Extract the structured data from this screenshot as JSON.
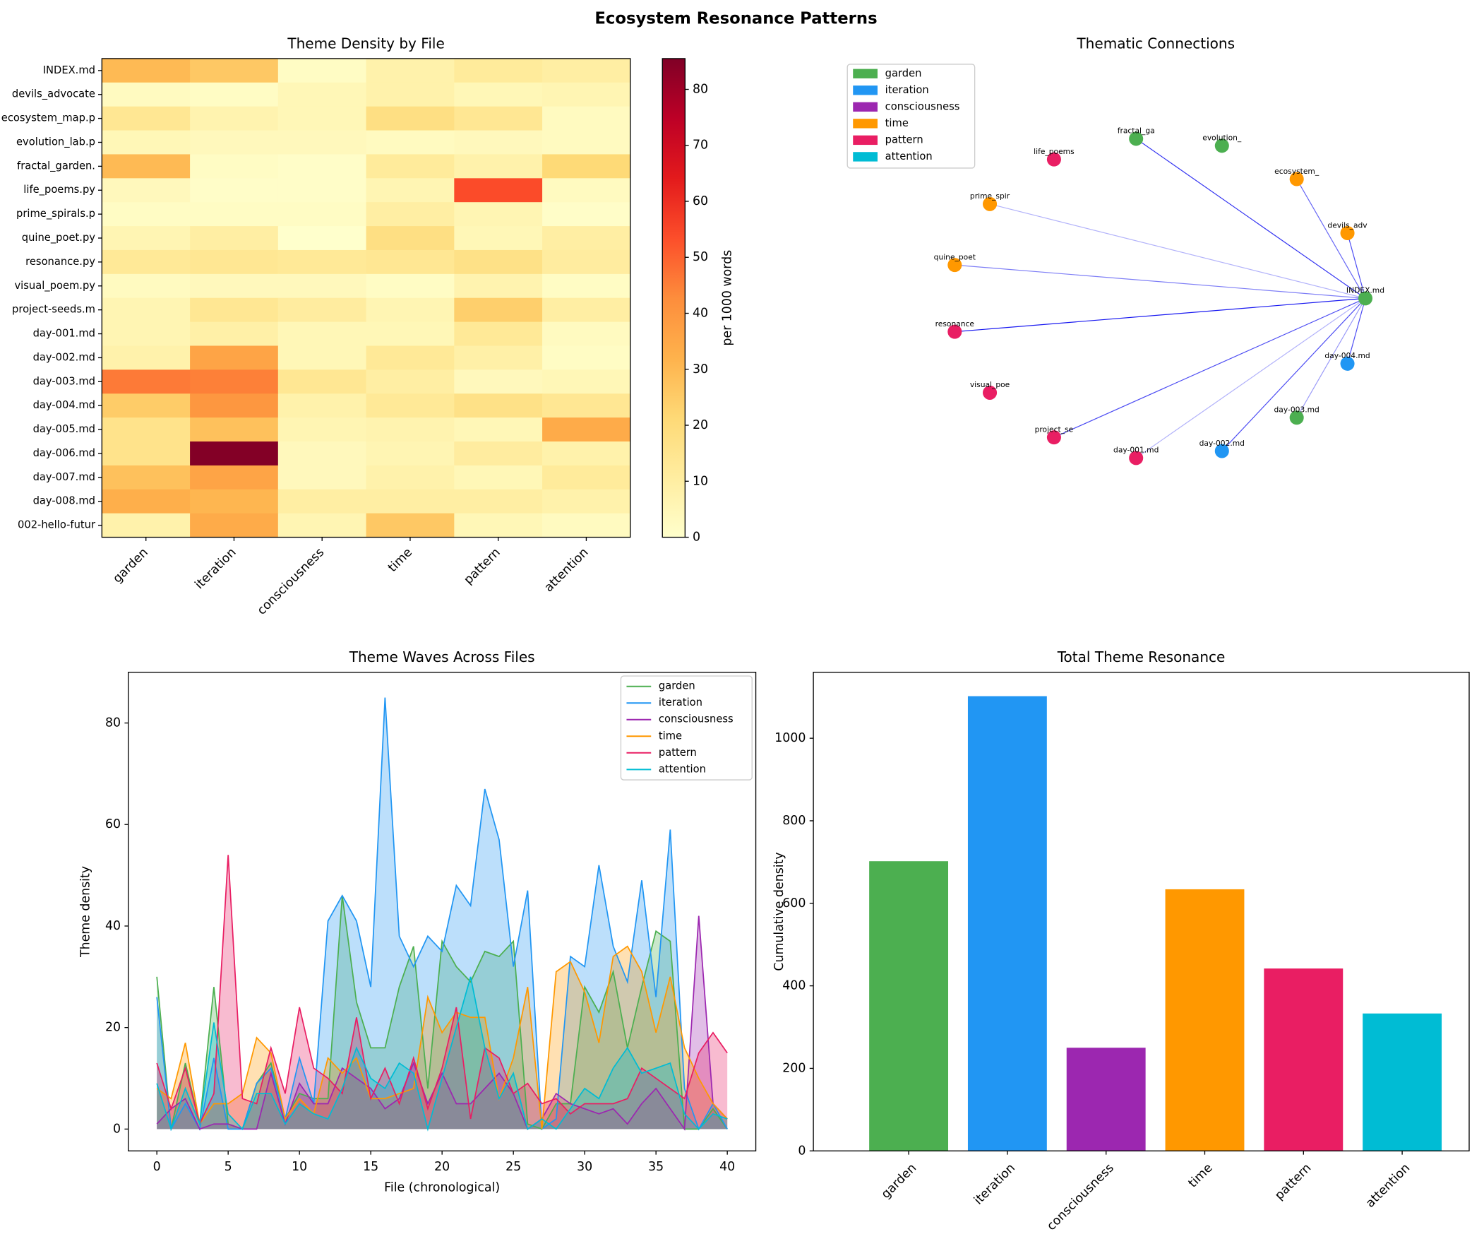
{
  "title": "Ecosystem Resonance Patterns",
  "chart_data": [
    {
      "type": "heatmap",
      "title": "Theme Density by File",
      "columns": [
        "garden",
        "iteration",
        "consciousness",
        "time",
        "pattern",
        "attention"
      ],
      "rows": [
        "INDEX.md",
        "devils_advocate",
        "ecosystem_map.p",
        "evolution_lab.p",
        "fractal_garden.",
        "life_poems.py",
        "prime_spirals.p",
        "quine_poet.py",
        "resonance.py",
        "visual_poem.py",
        "project-seeds.m",
        "day-001.md",
        "day-002.md",
        "day-003.md",
        "day-004.md",
        "day-005.md",
        "day-006.md",
        "day-007.md",
        "day-008.md",
        "002-hello-futur"
      ],
      "values": [
        [
          30,
          26,
          2,
          8,
          12,
          10
        ],
        [
          3,
          2,
          5,
          8,
          5,
          6
        ],
        [
          14,
          7,
          5,
          18,
          14,
          3
        ],
        [
          5,
          4,
          4,
          3,
          4,
          3
        ],
        [
          30,
          2,
          1,
          12,
          8,
          21
        ],
        [
          4,
          1,
          1,
          6,
          54,
          3
        ],
        [
          2,
          2,
          2,
          10,
          6,
          1
        ],
        [
          6,
          10,
          0,
          18,
          5,
          10
        ],
        [
          13,
          14,
          13,
          14,
          17,
          11
        ],
        [
          3,
          4,
          4,
          2,
          7,
          2
        ],
        [
          6,
          14,
          11,
          6,
          24,
          10
        ],
        [
          6,
          9,
          5,
          5,
          13,
          3
        ],
        [
          8,
          36,
          5,
          13,
          9,
          2
        ],
        [
          46,
          45,
          14,
          10,
          4,
          5
        ],
        [
          25,
          40,
          8,
          13,
          17,
          14
        ],
        [
          16,
          28,
          6,
          7,
          5,
          34
        ],
        [
          16,
          85,
          4,
          6,
          11,
          8
        ],
        [
          28,
          36,
          4,
          8,
          5,
          12
        ],
        [
          33,
          31,
          10,
          10,
          10,
          8
        ],
        [
          8,
          34,
          6,
          26,
          5,
          3
        ]
      ],
      "colormap": [
        "#ffffcc",
        "#ffeda0",
        "#fed976",
        "#feb24c",
        "#fd8d3c",
        "#fc4e2a",
        "#e31a1c",
        "#bd0026",
        "#800026"
      ],
      "clim": [
        0,
        85.5
      ],
      "cticks": [
        0,
        10,
        20,
        30,
        40,
        50,
        60,
        70,
        80
      ],
      "colorbar_label": "per 1000 words"
    },
    {
      "type": "network",
      "title": "Thematic Connections",
      "legend": [
        {
          "name": "garden",
          "color": "#4caf50"
        },
        {
          "name": "iteration",
          "color": "#2196f3"
        },
        {
          "name": "consciousness",
          "color": "#9c27b0"
        },
        {
          "name": "time",
          "color": "#ff9800"
        },
        {
          "name": "pattern",
          "color": "#e91e63"
        },
        {
          "name": "attention",
          "color": "#00bcd4"
        }
      ],
      "nodes": [
        {
          "label": "INDEX.md",
          "theme": 0
        },
        {
          "label": "devils_adv",
          "theme": 3
        },
        {
          "label": "ecosystem_",
          "theme": 3
        },
        {
          "label": "evolution_",
          "theme": 0
        },
        {
          "label": "fractal_ga",
          "theme": 0
        },
        {
          "label": "life_poems",
          "theme": 4
        },
        {
          "label": "prime_spir",
          "theme": 3
        },
        {
          "label": "quine_poet",
          "theme": 3
        },
        {
          "label": "resonance",
          "theme": 4
        },
        {
          "label": "visual_poe",
          "theme": 4
        },
        {
          "label": "project_se",
          "theme": 4
        },
        {
          "label": "day-001.md",
          "theme": 4
        },
        {
          "label": "day-002.md",
          "theme": 1
        },
        {
          "label": "day-003.md",
          "theme": 0
        },
        {
          "label": "day-004.md",
          "theme": 1
        }
      ],
      "edges": [
        {
          "source": 0,
          "target": 1,
          "weight": 0.7
        },
        {
          "source": 0,
          "target": 2,
          "weight": 0.6
        },
        {
          "source": 0,
          "target": 4,
          "weight": 0.8
        },
        {
          "source": 0,
          "target": 6,
          "weight": 0.3
        },
        {
          "source": 0,
          "target": 7,
          "weight": 0.5
        },
        {
          "source": 0,
          "target": 8,
          "weight": 0.9
        },
        {
          "source": 0,
          "target": 10,
          "weight": 0.7
        },
        {
          "source": 0,
          "target": 11,
          "weight": 0.3
        },
        {
          "source": 0,
          "target": 12,
          "weight": 0.7
        },
        {
          "source": 0,
          "target": 13,
          "weight": 0.4
        },
        {
          "source": 0,
          "target": 14,
          "weight": 0.7
        }
      ]
    },
    {
      "type": "line",
      "title": "Theme Waves Across Files",
      "x_label": "File (chronological)",
      "y_label": "Theme density",
      "x": [
        0,
        1,
        2,
        3,
        4,
        5,
        6,
        7,
        8,
        9,
        10,
        11,
        12,
        13,
        14,
        15,
        16,
        17,
        18,
        19,
        20,
        21,
        22,
        23,
        24,
        25,
        26,
        27,
        28,
        29,
        30,
        31,
        32,
        33,
        34,
        35,
        36,
        37,
        38,
        39,
        40
      ],
      "series": [
        {
          "name": "garden",
          "color": "#4caf50",
          "values": [
            30,
            0,
            13,
            1,
            28,
            1,
            0,
            9,
            13,
            2,
            7,
            6,
            6,
            46,
            25,
            16,
            16,
            28,
            36,
            8,
            37,
            32,
            29,
            35,
            34,
            37,
            1,
            0,
            5,
            5,
            28,
            23,
            31,
            16,
            28,
            39,
            37,
            0,
            0,
            4,
            0
          ]
        },
        {
          "name": "iteration",
          "color": "#2196f3",
          "values": [
            26,
            0,
            5,
            0,
            14,
            0,
            0,
            9,
            12,
            2,
            14,
            5,
            41,
            46,
            41,
            28,
            85,
            38,
            32,
            38,
            35,
            48,
            44,
            67,
            57,
            32,
            47,
            0,
            2,
            34,
            32,
            52,
            36,
            29,
            49,
            26,
            59,
            8,
            0,
            5,
            0
          ]
        },
        {
          "name": "consciousness",
          "color": "#9c27b0",
          "values": [
            1,
            4,
            6,
            0,
            1,
            1,
            0,
            0,
            11,
            1,
            9,
            5,
            5,
            12,
            10,
            8,
            4,
            6,
            13,
            5,
            11,
            5,
            5,
            8,
            11,
            7,
            0,
            2,
            7,
            5,
            4,
            3,
            4,
            1,
            5,
            8,
            4,
            0,
            42,
            5,
            2
          ]
        },
        {
          "name": "time",
          "color": "#ff9800",
          "values": [
            8,
            6,
            17,
            1,
            5,
            5,
            7,
            18,
            15,
            2,
            6,
            3,
            14,
            11,
            14,
            6,
            6,
            7,
            8,
            26,
            19,
            23,
            22,
            22,
            6,
            14,
            28,
            0,
            31,
            33,
            27,
            17,
            34,
            36,
            31,
            19,
            30,
            16,
            10,
            5,
            2
          ]
        },
        {
          "name": "pattern",
          "color": "#e91e63",
          "values": [
            13,
            4,
            12,
            1,
            7,
            54,
            6,
            5,
            16,
            7,
            24,
            12,
            10,
            7,
            22,
            6,
            12,
            5,
            14,
            4,
            12,
            24,
            2,
            16,
            14,
            7,
            9,
            5,
            6,
            3,
            5,
            5,
            5,
            6,
            12,
            10,
            8,
            6,
            15,
            19,
            15
          ]
        },
        {
          "name": "attention",
          "color": "#00bcd4",
          "values": [
            9,
            0,
            8,
            1,
            21,
            3,
            0,
            7,
            7,
            1,
            5,
            3,
            2,
            8,
            16,
            10,
            8,
            13,
            11,
            0,
            10,
            20,
            30,
            16,
            6,
            11,
            0,
            2,
            0,
            4,
            8,
            6,
            12,
            16,
            11,
            12,
            13,
            3,
            0,
            3,
            2
          ]
        }
      ],
      "xlim": [
        -2,
        42
      ],
      "xticks": [
        0,
        5,
        10,
        15,
        20,
        25,
        30,
        35,
        40
      ],
      "ylim": [
        -4.3,
        90
      ],
      "yticks": [
        0,
        20,
        40,
        60,
        80
      ],
      "legend": "upper right"
    },
    {
      "type": "bar",
      "title": "Total Theme Resonance",
      "y_label": "Cumulative density",
      "categories": [
        "garden",
        "iteration",
        "consciousness",
        "time",
        "pattern",
        "attention"
      ],
      "values": [
        702,
        1102,
        250,
        634,
        442,
        333
      ],
      "colors": [
        "#4caf50",
        "#2196f3",
        "#9c27b0",
        "#ff9800",
        "#e91e63",
        "#00bcd4"
      ],
      "ylim": [
        0,
        1160
      ],
      "yticks": [
        0,
        200,
        400,
        600,
        800,
        1000
      ]
    }
  ]
}
